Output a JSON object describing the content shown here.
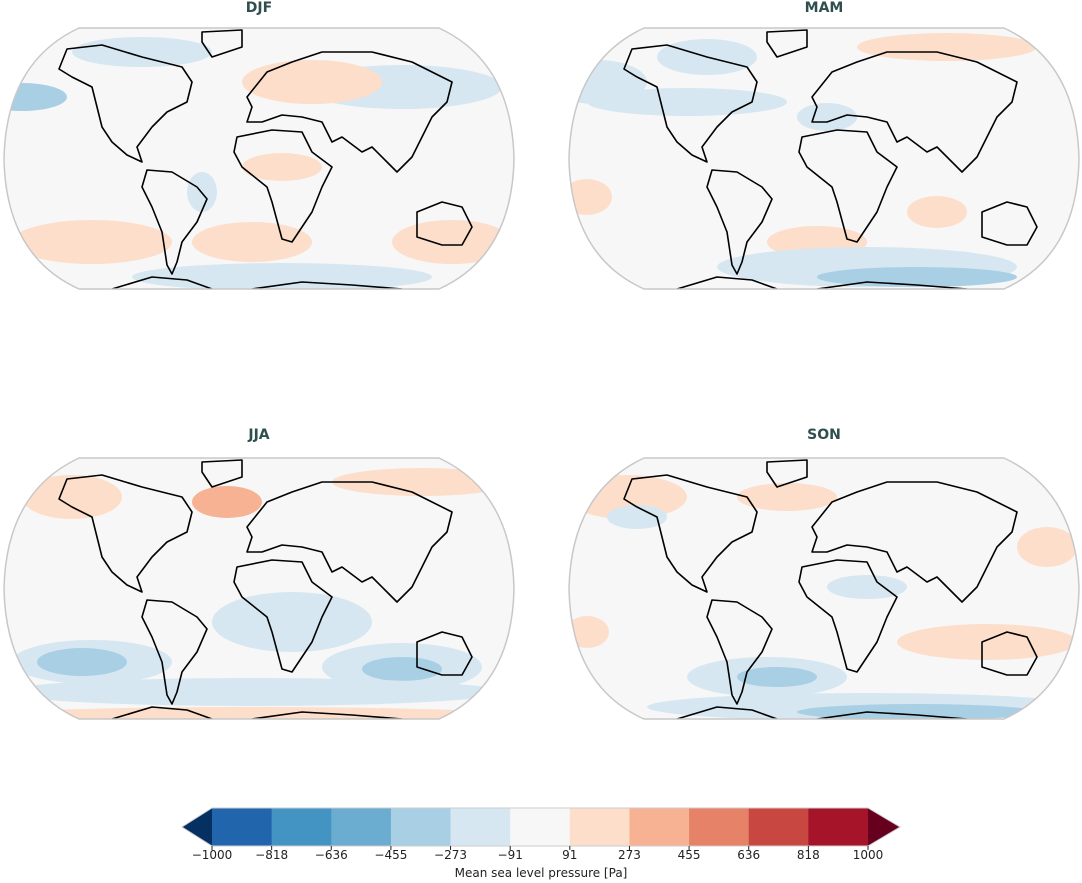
{
  "panels": [
    {
      "title": "DJF"
    },
    {
      "title": "MAM"
    },
    {
      "title": "JJA"
    },
    {
      "title": "SON"
    }
  ],
  "colorbar": {
    "label": "Mean sea level pressure [Pa]",
    "ticks": [
      "−1000",
      "−818",
      "−636",
      "−455",
      "−273",
      "−91",
      "91",
      "273",
      "455",
      "636",
      "818",
      "1000"
    ],
    "colors": [
      "#053061",
      "#2166ac",
      "#4393c3",
      "#6bacd1",
      "#a9cfe5",
      "#d6e7f1",
      "#f7f7f7",
      "#fcdecb",
      "#f6b293",
      "#e58267",
      "#c94741",
      "#a51429",
      "#67001f"
    ],
    "extend": "both"
  }
}
